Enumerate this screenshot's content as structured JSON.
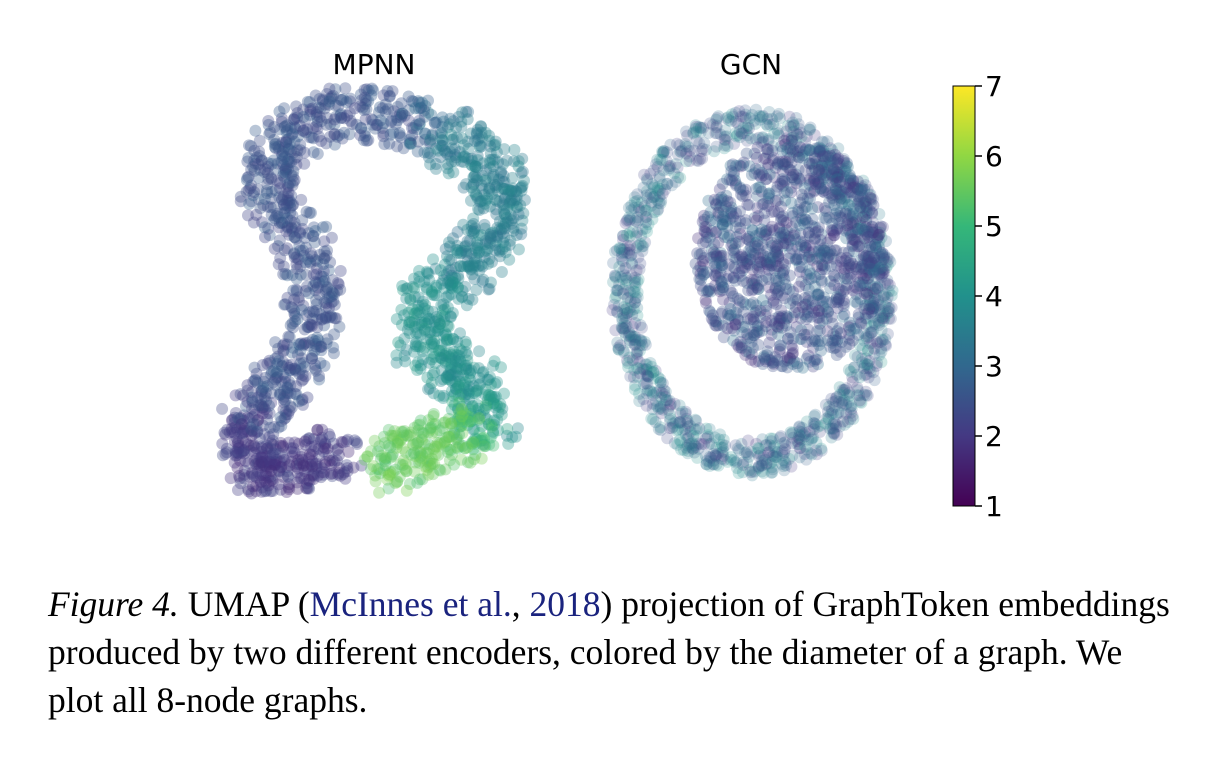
{
  "caption": {
    "label": "Figure 4.",
    "text_before": "UMAP (",
    "cite_author": "McInnes et al.",
    "cite_sep": ", ",
    "cite_year": "2018",
    "text_after": ") projection of GraphToken embeddings produced by two different encoders, colored by the diameter of a graph. We plot all 8-node graphs.",
    "cite_color": "#1a237e"
  },
  "chart_data": [
    {
      "type": "scatter",
      "title": "MPNN",
      "xlabel": "",
      "ylabel": "",
      "grid": false,
      "axes_visible": false,
      "color_by": "diameter",
      "colormap": "viridis",
      "shape": "curved band",
      "regions": [
        {
          "part": "left tail (bottom-left hook)",
          "diameter": 2
        },
        {
          "part": "left arm and top arc",
          "diameter": 2.5
        },
        {
          "part": "right bend",
          "diameter": 3.5
        },
        {
          "part": "right lower lobe",
          "diameter": 4
        },
        {
          "part": "bottom-right tip",
          "diameter": 5.5
        }
      ]
    },
    {
      "type": "scatter",
      "title": "GCN",
      "xlabel": "",
      "ylabel": "",
      "grid": false,
      "axes_visible": false,
      "color_by": "diameter",
      "colormap": "viridis",
      "shape": "dense core with surrounding ring",
      "regions": [
        {
          "part": "central core",
          "diameter": 2.5
        },
        {
          "part": "outer ring",
          "diameter": 3
        }
      ]
    }
  ],
  "colorbar": {
    "colormap": "viridis",
    "min": 1,
    "max": 7,
    "ticks": [
      "1",
      "2",
      "3",
      "4",
      "5",
      "6",
      "7"
    ],
    "stops": [
      "#440154",
      "#443983",
      "#31688e",
      "#21918c",
      "#35b779",
      "#90d743",
      "#fde725"
    ]
  }
}
